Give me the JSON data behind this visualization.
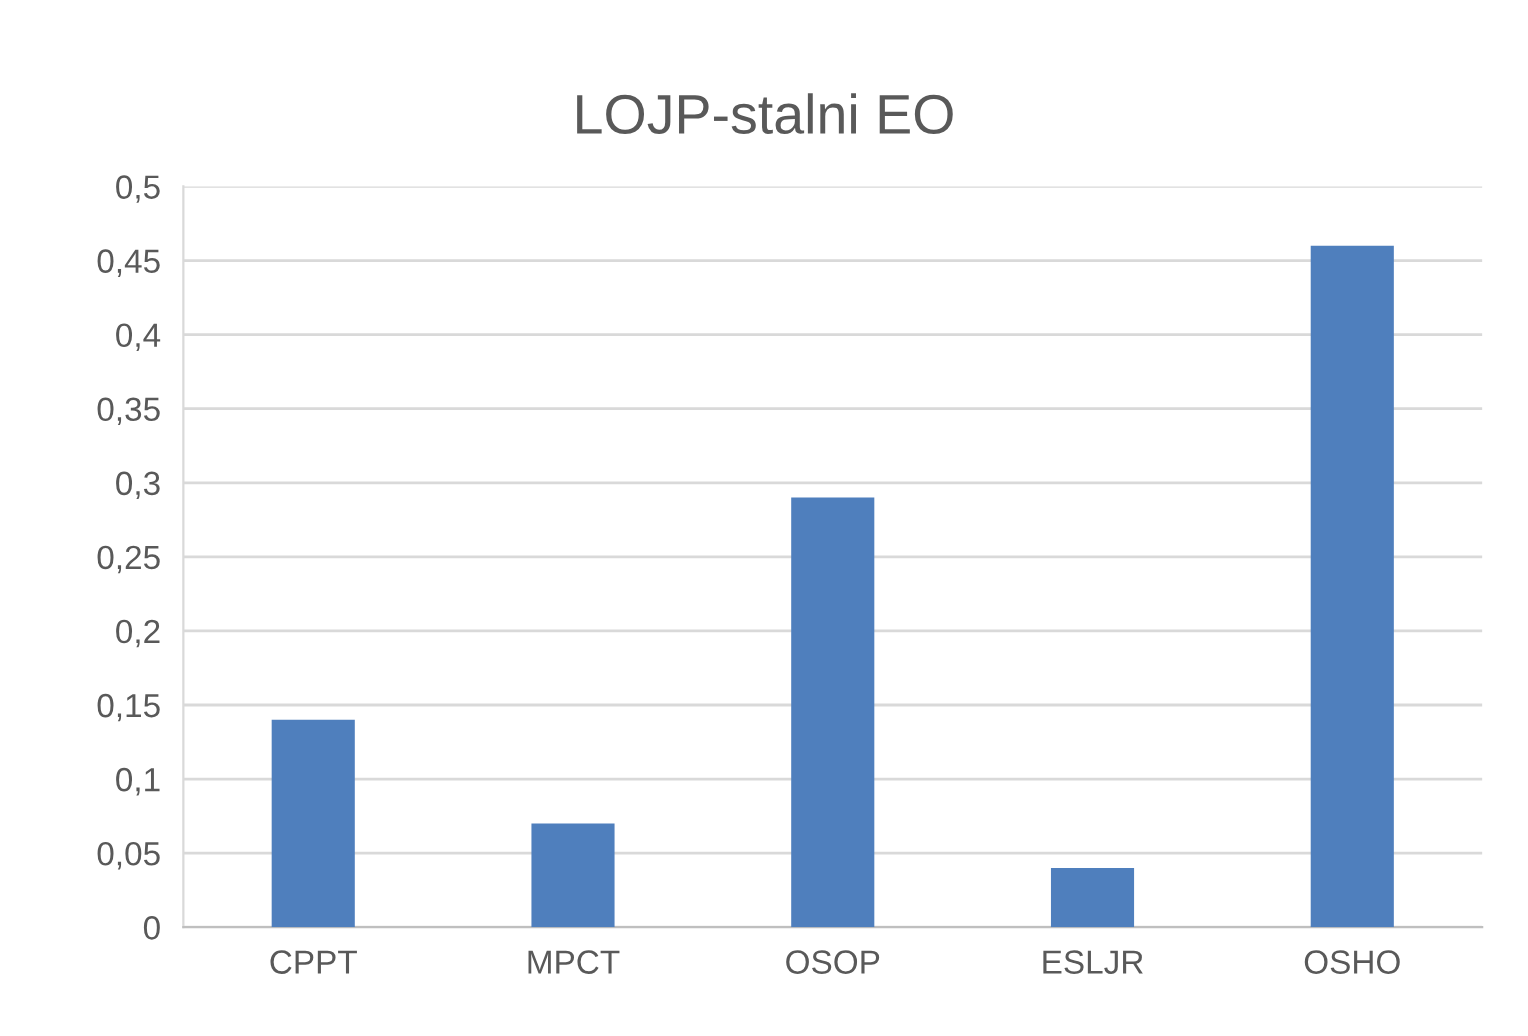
{
  "chart_data": {
    "type": "bar",
    "title": "LOJP-stalni EO",
    "categories": [
      "CPPT",
      "MPCT",
      "OSOP",
      "ESLJR",
      "OSHO"
    ],
    "values": [
      0.14,
      0.07,
      0.29,
      0.04,
      0.46
    ],
    "color": "#4f7fbd",
    "ylim": [
      0,
      0.5
    ],
    "yticks": [
      0,
      {
        "value": 0.05,
        "label": "0,05"
      },
      {
        "value": 0.1,
        "label": "0,1"
      },
      {
        "value": 0.15,
        "label": "0,15"
      },
      {
        "value": 0.2,
        "label": "0,2"
      },
      {
        "value": 0.25,
        "label": "0,25"
      },
      {
        "value": 0.3,
        "label": "0,3"
      },
      {
        "value": 0.35,
        "label": "0,35"
      },
      {
        "value": 0.4,
        "label": "0,4"
      },
      {
        "value": 0.45,
        "label": "0,45"
      },
      {
        "value": 0.5,
        "label": "0,5"
      }
    ],
    "grid": "y"
  }
}
